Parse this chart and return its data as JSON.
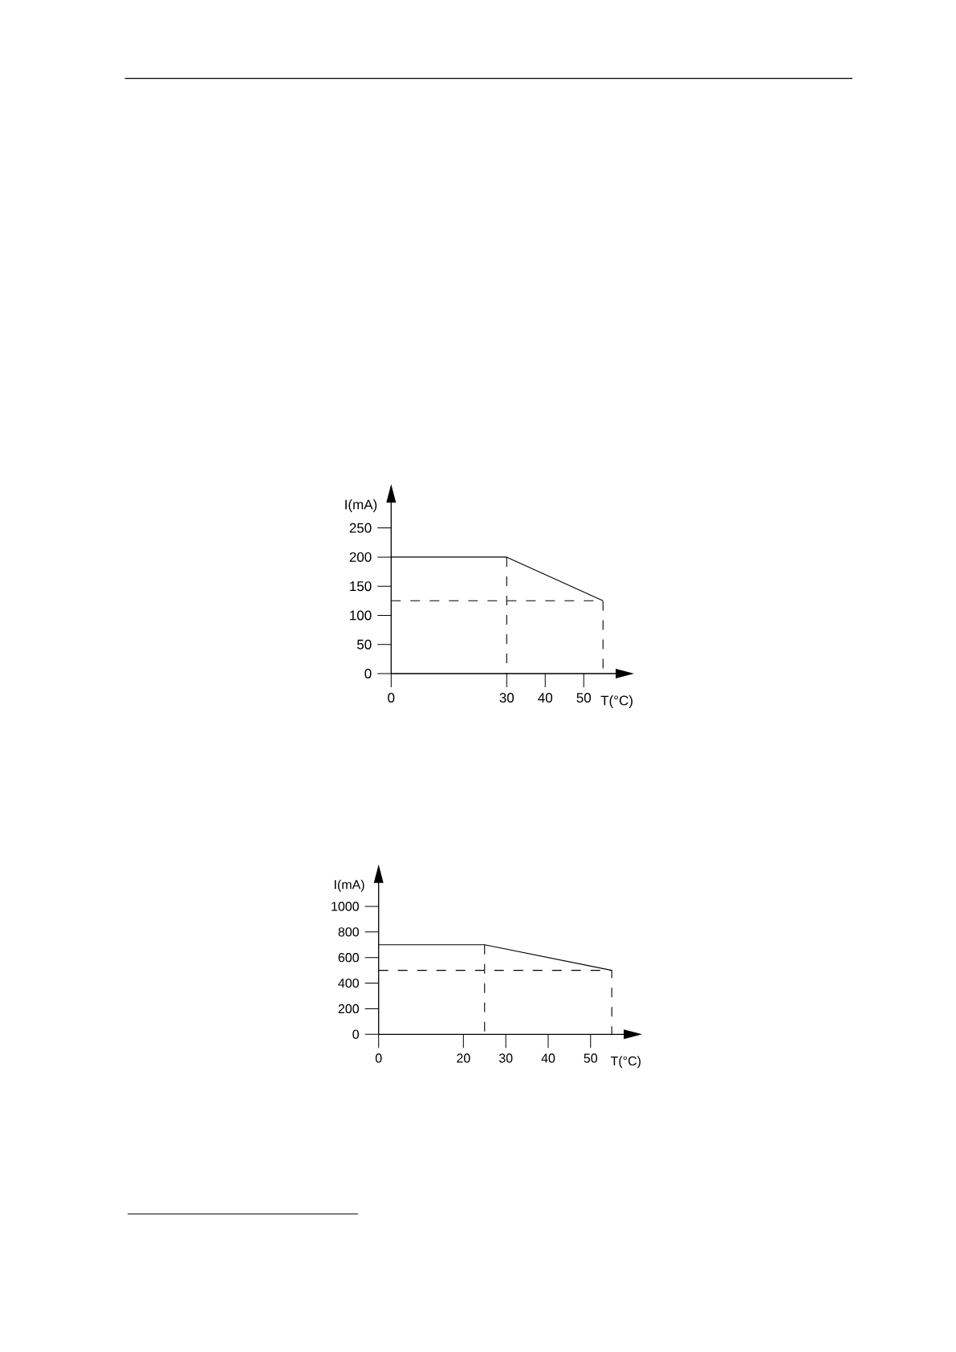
{
  "chart_data": [
    {
      "type": "line",
      "xlabel": "T(°C)",
      "ylabel": "I(mA)",
      "series": [
        {
          "color": "#000000",
          "x": [
            0,
            30,
            55
          ],
          "values": [
            200,
            200,
            125
          ]
        },
        {
          "color": "#000000",
          "x": [
            0,
            55,
            55
          ],
          "values": [
            125,
            125,
            0
          ],
          "line_style": "dashed"
        },
        {
          "color": "#000000",
          "x": [
            30,
            30
          ],
          "values": [
            200,
            0
          ],
          "line_style": "dashed"
        }
      ],
      "xlim": [
        0,
        58.5
      ],
      "ylim": [
        0,
        295
      ],
      "xticks": [
        0,
        30,
        40,
        50
      ],
      "yticks": [
        0,
        50,
        100,
        150,
        200,
        250
      ],
      "marker": "none",
      "line_style": "solid"
    },
    {
      "type": "line",
      "xlabel": "T(°C)",
      "ylabel": "I(mA)",
      "series": [
        {
          "color": "#000000",
          "x": [
            0,
            25,
            55
          ],
          "values": [
            700,
            700,
            500
          ]
        },
        {
          "color": "#000000",
          "x": [
            0,
            55,
            55
          ],
          "values": [
            500,
            500,
            0
          ],
          "line_style": "dashed"
        },
        {
          "color": "#000000",
          "x": [
            25,
            25
          ],
          "values": [
            700,
            0
          ],
          "line_style": "dashed"
        }
      ],
      "xlim": [
        0,
        58
      ],
      "ylim": [
        0,
        1190
      ],
      "xticks": [
        0,
        20,
        30,
        40,
        50
      ],
      "yticks": [
        0,
        200,
        400,
        600,
        800,
        1000
      ],
      "marker": "none",
      "line_style": "solid"
    }
  ]
}
